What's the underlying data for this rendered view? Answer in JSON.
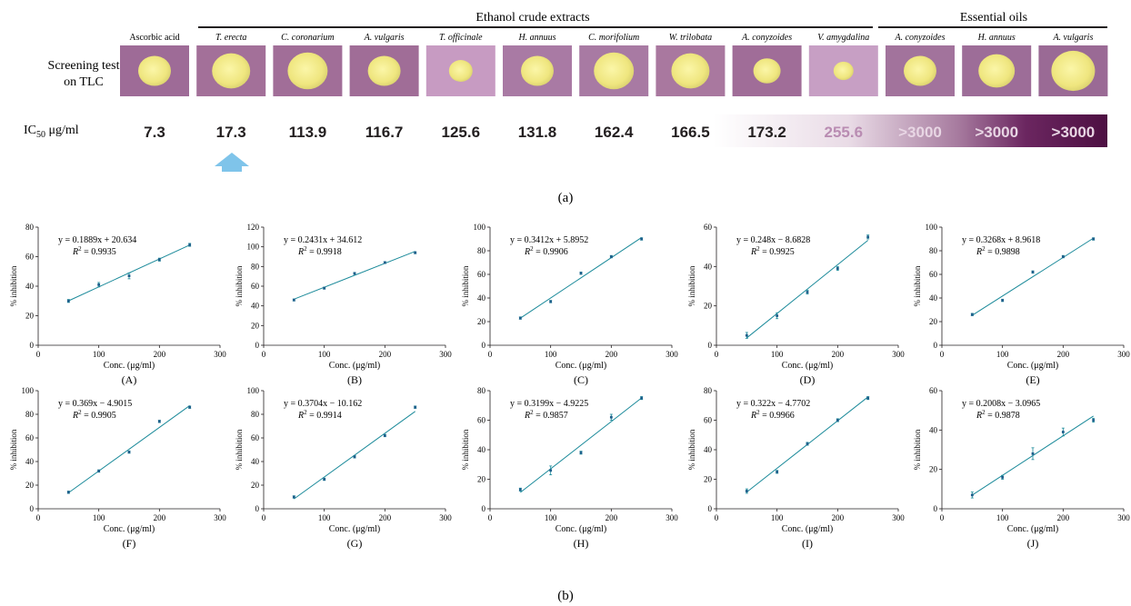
{
  "panel_a": {
    "group_labels": [
      "Ethanol crude extracts",
      "Essential oils"
    ],
    "row_label_screening": [
      "Screening test",
      "on TLC"
    ],
    "row_label_ic50_prefix": "IC",
    "row_label_ic50_sub": "50",
    "row_label_ic50_unit": " μg/ml",
    "samples": [
      {
        "name": "Ascorbic acid",
        "italic": false,
        "ic50": "7.3"
      },
      {
        "name": "T. erecta",
        "italic": true,
        "ic50": "17.3"
      },
      {
        "name": "C. coronarium",
        "italic": true,
        "ic50": "113.9"
      },
      {
        "name": "A. vulgaris",
        "italic": true,
        "ic50": "116.7"
      },
      {
        "name": "T. officinale",
        "italic": true,
        "ic50": "125.6"
      },
      {
        "name": "H. annuus",
        "italic": true,
        "ic50": "131.8"
      },
      {
        "name": "C. morifolium",
        "italic": true,
        "ic50": "162.4"
      },
      {
        "name": "W. trilobata",
        "italic": true,
        "ic50": "166.5"
      },
      {
        "name": "A. conyzoides",
        "italic": true,
        "ic50": "173.2"
      },
      {
        "name": "V. amygdalina",
        "italic": true,
        "ic50": "255.6"
      },
      {
        "name": "A. conyzoides",
        "italic": true,
        "ic50": ">3000"
      },
      {
        "name": "H. annuus",
        "italic": true,
        "ic50": ">3000"
      },
      {
        "name": "A. vulgaris",
        "italic": true,
        "ic50": ">3000"
      }
    ],
    "caption": "(a)",
    "colors": {
      "tlc_background": "#a46f9c",
      "spot": "#f0ea8a",
      "arrow": "#7fc4ea",
      "gradient_dark": "#4d0f42"
    }
  },
  "chart_data": [
    {
      "type": "scatter",
      "label": "(A)",
      "equation": "y = 0.1889x + 20.634",
      "r2": "0.9935",
      "slope": 0.1889,
      "intercept": 20.634,
      "x": [
        50,
        100,
        150,
        200,
        250
      ],
      "y": [
        30,
        41,
        47,
        58,
        68
      ],
      "err": [
        1,
        1.5,
        2,
        1,
        1
      ],
      "xlim": [
        0,
        300
      ],
      "ylim": [
        0,
        80
      ],
      "xticks": [
        0,
        100,
        200,
        300
      ],
      "yticks": [
        0,
        20,
        40,
        60,
        80
      ],
      "xlabel": "Conc. (μg/ml)",
      "ylabel": "% inhibition",
      "line_color": "#1b8a9a"
    },
    {
      "type": "scatter",
      "label": "(B)",
      "equation": "y = 0.2431x + 34.612",
      "r2": "0.9918",
      "slope": 0.2431,
      "intercept": 34.612,
      "x": [
        50,
        100,
        150,
        200,
        250
      ],
      "y": [
        46,
        58,
        73,
        84,
        94
      ],
      "err": [
        1,
        1,
        1,
        1,
        1
      ],
      "xlim": [
        0,
        300
      ],
      "ylim": [
        0,
        120
      ],
      "xticks": [
        0,
        100,
        200,
        300
      ],
      "yticks": [
        0,
        20,
        40,
        60,
        80,
        100,
        120
      ],
      "xlabel": "Conc. (μg/ml)",
      "ylabel": "% inhibition",
      "line_color": "#1b8a9a"
    },
    {
      "type": "scatter",
      "label": "(C)",
      "equation": "y = 0.3412x + 5.8952",
      "r2": "0.9906",
      "slope": 0.3412,
      "intercept": 5.8952,
      "x": [
        50,
        100,
        150,
        200,
        250
      ],
      "y": [
        23,
        37,
        61,
        75,
        90
      ],
      "err": [
        1,
        1,
        1,
        1,
        1
      ],
      "xlim": [
        0,
        300
      ],
      "ylim": [
        0,
        100
      ],
      "xticks": [
        0,
        100,
        200,
        300
      ],
      "yticks": [
        0,
        20,
        40,
        60,
        80,
        100
      ],
      "xlabel": "Conc. (μg/ml)",
      "ylabel": "% inhibition",
      "line_color": "#1b8a9a"
    },
    {
      "type": "scatter",
      "label": "(D)",
      "equation": "y = 0.248x − 8.6828",
      "r2": "0.9925",
      "slope": 0.248,
      "intercept": -8.6828,
      "x": [
        50,
        100,
        150,
        200,
        250
      ],
      "y": [
        5,
        15,
        27,
        39,
        55
      ],
      "err": [
        1.5,
        1.5,
        1,
        1,
        1
      ],
      "xlim": [
        0,
        300
      ],
      "ylim": [
        0,
        60
      ],
      "xticks": [
        0,
        100,
        200,
        300
      ],
      "yticks": [
        0,
        20,
        40,
        60
      ],
      "xlabel": "Conc. (μg/ml)",
      "ylabel": "% inhibition",
      "line_color": "#1b8a9a"
    },
    {
      "type": "scatter",
      "label": "(E)",
      "equation": "y = 0.3268x + 8.9618",
      "r2": "0.9898",
      "slope": 0.3268,
      "intercept": 8.9618,
      "x": [
        50,
        100,
        150,
        200,
        250
      ],
      "y": [
        26,
        38,
        62,
        75,
        90
      ],
      "err": [
        1,
        1,
        1,
        1,
        1
      ],
      "xlim": [
        0,
        300
      ],
      "ylim": [
        0,
        100
      ],
      "xticks": [
        0,
        100,
        200,
        300
      ],
      "yticks": [
        0,
        20,
        40,
        60,
        80,
        100
      ],
      "xlabel": "Conc. (μg/ml)",
      "ylabel": "% inhibition",
      "line_color": "#1b8a9a"
    },
    {
      "type": "scatter",
      "label": "(F)",
      "equation": "y = 0.369x − 4.9015",
      "r2": "0.9905",
      "slope": 0.369,
      "intercept": -4.9015,
      "x": [
        50,
        100,
        150,
        200,
        250
      ],
      "y": [
        14,
        32,
        48,
        74,
        86
      ],
      "err": [
        1,
        1,
        1,
        1,
        1
      ],
      "xlim": [
        0,
        300
      ],
      "ylim": [
        0,
        100
      ],
      "xticks": [
        0,
        100,
        200,
        300
      ],
      "yticks": [
        0,
        20,
        40,
        60,
        80,
        100
      ],
      "xlabel": "Conc. (μg/ml)",
      "ylabel": "% inhibition",
      "line_color": "#1b8a9a"
    },
    {
      "type": "scatter",
      "label": "(G)",
      "equation": "y = 0.3704x − 10.162",
      "r2": "0.9914",
      "slope": 0.3704,
      "intercept": -10.162,
      "x": [
        50,
        100,
        150,
        200,
        250
      ],
      "y": [
        10,
        25,
        44,
        62,
        86
      ],
      "err": [
        1,
        1,
        1,
        1,
        1
      ],
      "xlim": [
        0,
        300
      ],
      "ylim": [
        0,
        100
      ],
      "xticks": [
        0,
        100,
        200,
        300
      ],
      "yticks": [
        0,
        20,
        40,
        60,
        80,
        100
      ],
      "xlabel": "Conc. (μg/ml)",
      "ylabel": "% inhibition",
      "line_color": "#1b8a9a"
    },
    {
      "type": "scatter",
      "label": "(H)",
      "equation": "y = 0.3199x − 4.9225",
      "r2": "0.9857",
      "slope": 0.3199,
      "intercept": -4.9225,
      "x": [
        50,
        100,
        150,
        200,
        250
      ],
      "y": [
        13,
        26,
        38,
        62,
        75
      ],
      "err": [
        1,
        3,
        1,
        2,
        1
      ],
      "xlim": [
        0,
        300
      ],
      "ylim": [
        0,
        80
      ],
      "xticks": [
        0,
        100,
        200,
        300
      ],
      "yticks": [
        0,
        20,
        40,
        60,
        80
      ],
      "xlabel": "Conc. (μg/ml)",
      "ylabel": "% inhibition",
      "line_color": "#1b8a9a"
    },
    {
      "type": "scatter",
      "label": "(I)",
      "equation": "y = 0.322x − 4.7702",
      "r2": "0.9966",
      "slope": 0.322,
      "intercept": -4.7702,
      "x": [
        50,
        100,
        150,
        200,
        250
      ],
      "y": [
        12,
        25,
        44,
        60,
        75
      ],
      "err": [
        1.5,
        1,
        1,
        1,
        1
      ],
      "xlim": [
        0,
        300
      ],
      "ylim": [
        0,
        80
      ],
      "xticks": [
        0,
        100,
        200,
        300
      ],
      "yticks": [
        0,
        20,
        40,
        60,
        80
      ],
      "xlabel": "Conc. (μg/ml)",
      "ylabel": "% inhibition",
      "line_color": "#1b8a9a"
    },
    {
      "type": "scatter",
      "label": "(J)",
      "equation": "y = 0.2008x − 3.0965",
      "r2": "0.9878",
      "slope": 0.2008,
      "intercept": -3.0965,
      "x": [
        50,
        100,
        150,
        200,
        250
      ],
      "y": [
        7,
        16,
        28,
        39,
        45
      ],
      "err": [
        1.5,
        1,
        3,
        2,
        1
      ],
      "xlim": [
        0,
        300
      ],
      "ylim": [
        0,
        60
      ],
      "xticks": [
        0,
        100,
        200,
        300
      ],
      "yticks": [
        0,
        20,
        40,
        60
      ],
      "xlabel": "Conc. (μg/ml)",
      "ylabel": "% inhibition",
      "line_color": "#1b8a9a"
    }
  ],
  "panel_b_caption": "(b)"
}
